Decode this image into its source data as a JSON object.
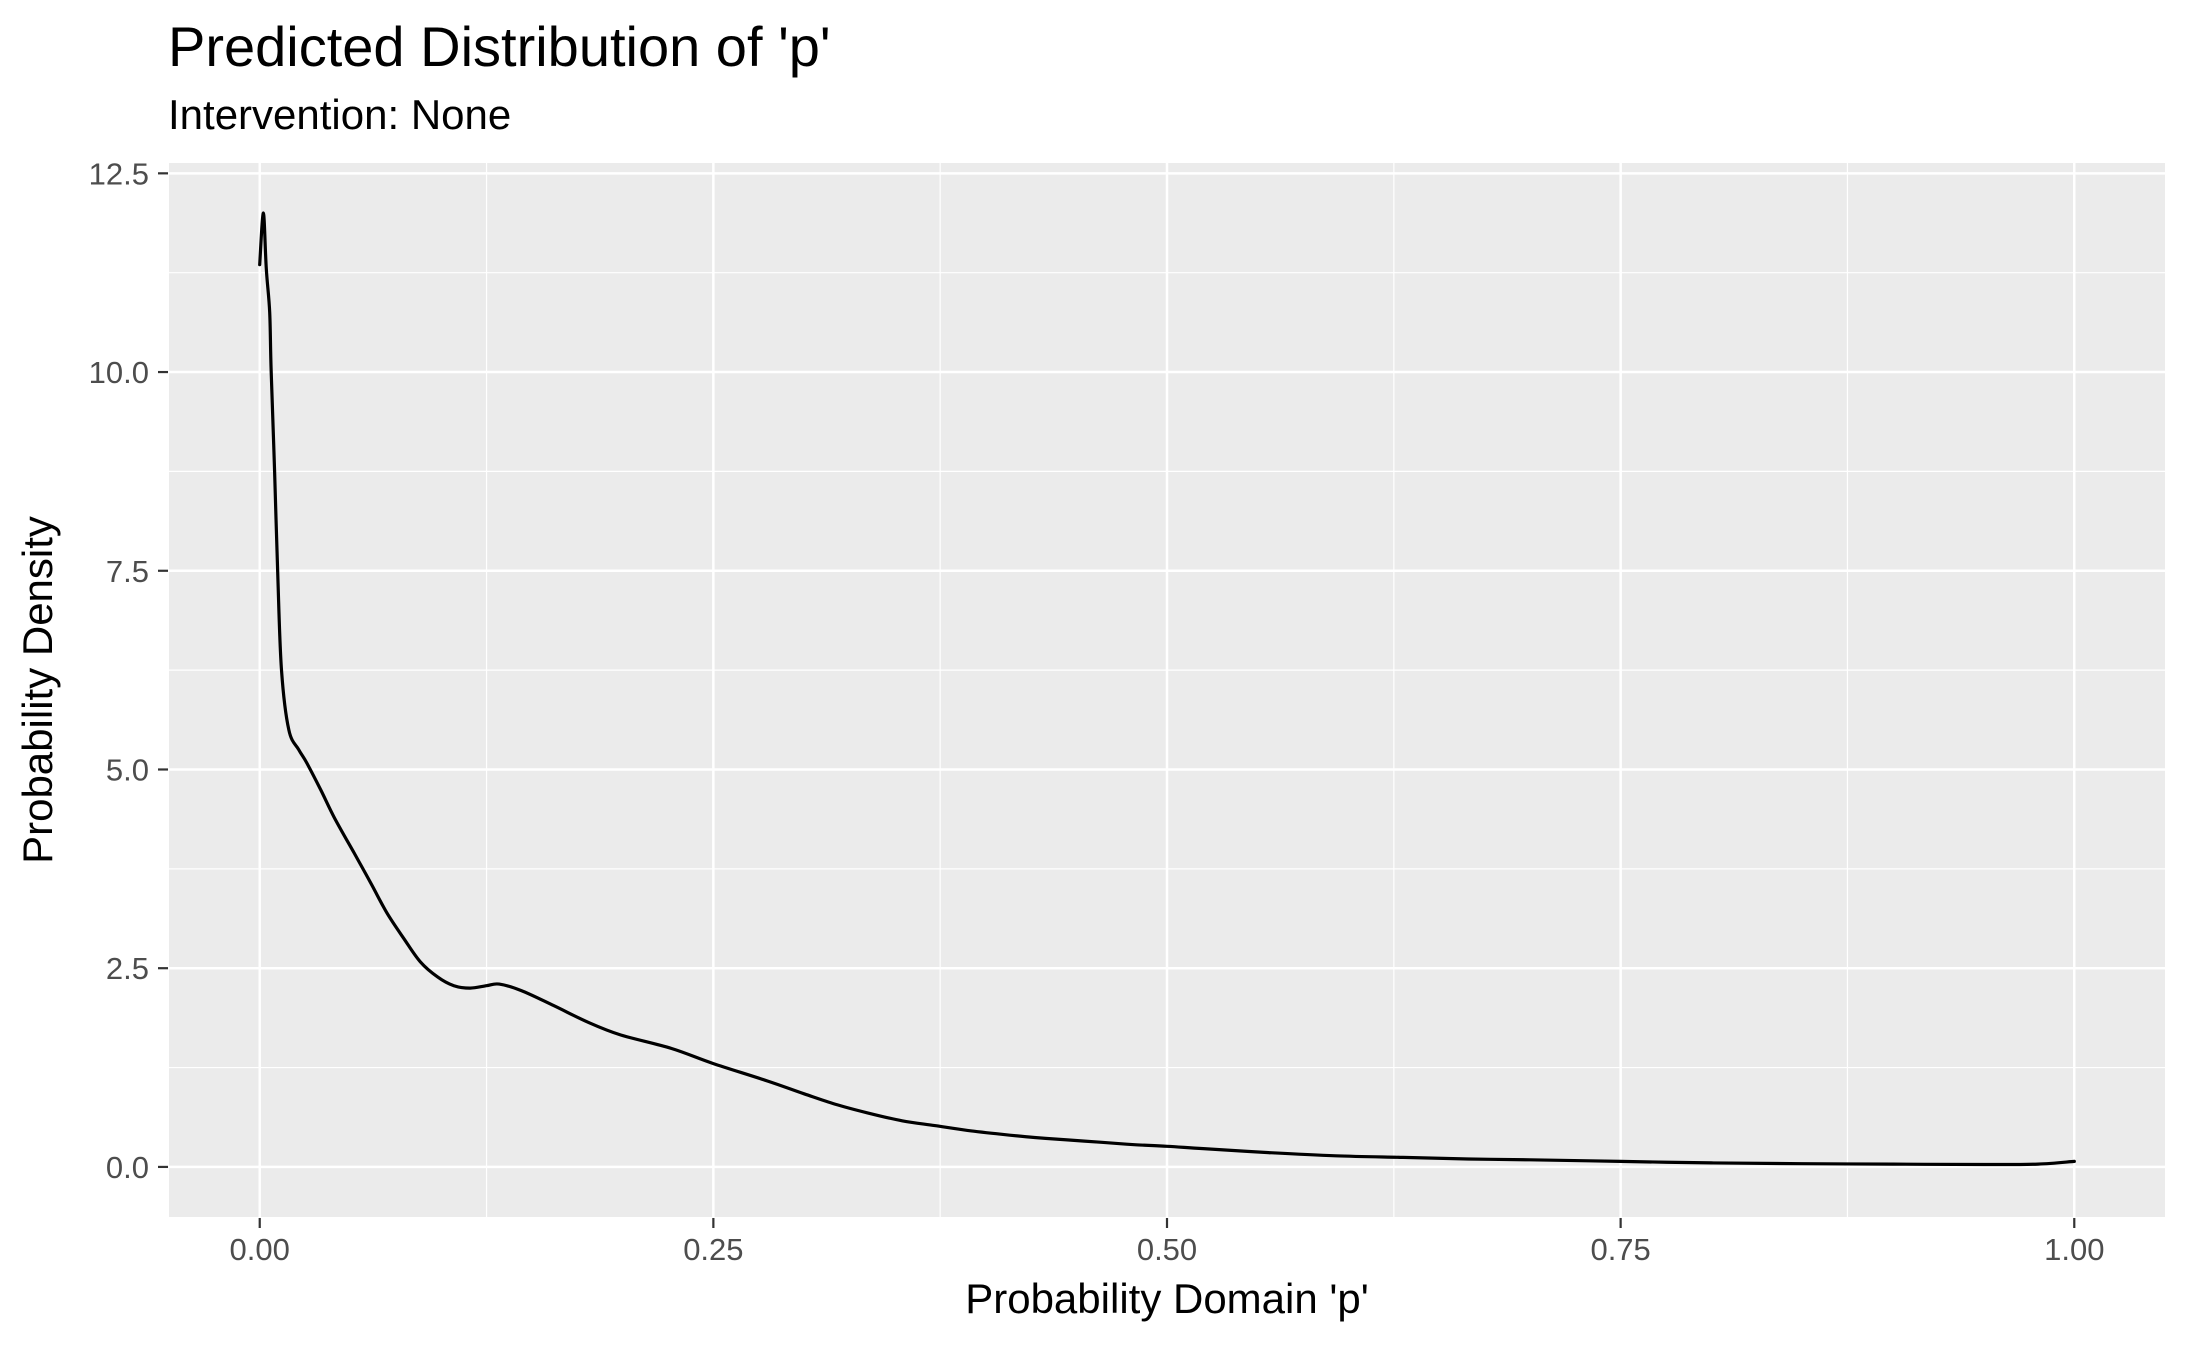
{
  "header": {
    "title": "Predicted Distribution of 'p'",
    "subtitle": "Intervention: None"
  },
  "colors": {
    "panel_background": "#EBEBEB",
    "gridline": "#FFFFFF",
    "curve": "#000000",
    "tick_mark": "#333333",
    "tick_label": "#4D4D4D",
    "text": "#000000",
    "plot_background": "#FFFFFF"
  },
  "chart_data": {
    "type": "line",
    "subtype": "density-curve",
    "title": "Predicted Distribution of 'p'",
    "subtitle": "Intervention: None",
    "xlabel": "Probability Domain 'p'",
    "ylabel": "Probability Density",
    "xlim": [
      -0.05,
      1.05
    ],
    "ylim": [
      -0.63,
      12.63
    ],
    "grid": "white major and minor gridlines on grey panel",
    "legend_position": "none",
    "x_ticks": {
      "values": [
        0,
        0.25,
        0.5,
        0.75,
        1
      ],
      "labels": [
        "0.00",
        "0.25",
        "0.50",
        "0.75",
        "1.00"
      ],
      "minor": [
        0.125,
        0.375,
        0.625,
        0.875
      ]
    },
    "y_ticks": {
      "values": [
        0,
        2.5,
        5,
        7.5,
        10,
        12.5
      ],
      "labels": [
        "0.0",
        "2.5",
        "5.0",
        "7.5",
        "10.0",
        "12.5"
      ],
      "minor": [
        1.25,
        3.75,
        6.25,
        8.75,
        11.25
      ]
    },
    "series": [
      {
        "name": "predicted density of p",
        "points": [
          [
            0.0,
            11.35
          ],
          [
            0.002,
            12.0
          ],
          [
            0.0036,
            11.3
          ],
          [
            0.0055,
            10.75
          ],
          [
            0.0063,
            10.0
          ],
          [
            0.0082,
            8.75
          ],
          [
            0.01,
            7.4
          ],
          [
            0.012,
            6.25
          ],
          [
            0.016,
            5.5
          ],
          [
            0.0215,
            5.25
          ],
          [
            0.026,
            5.08
          ],
          [
            0.0335,
            4.75
          ],
          [
            0.041,
            4.4
          ],
          [
            0.052,
            3.95
          ],
          [
            0.061,
            3.58
          ],
          [
            0.07,
            3.2
          ],
          [
            0.0795,
            2.87
          ],
          [
            0.0885,
            2.58
          ],
          [
            0.098,
            2.39
          ],
          [
            0.107,
            2.28
          ],
          [
            0.116,
            2.25
          ],
          [
            0.125,
            2.28
          ],
          [
            0.132,
            2.3
          ],
          [
            0.144,
            2.22
          ],
          [
            0.162,
            2.03
          ],
          [
            0.181,
            1.82
          ],
          [
            0.199,
            1.66
          ],
          [
            0.227,
            1.49
          ],
          [
            0.25,
            1.3
          ],
          [
            0.28,
            1.08
          ],
          [
            0.3,
            0.92
          ],
          [
            0.317,
            0.79
          ],
          [
            0.335,
            0.68
          ],
          [
            0.354,
            0.58
          ],
          [
            0.372,
            0.52
          ],
          [
            0.39,
            0.46
          ],
          [
            0.409,
            0.41
          ],
          [
            0.427,
            0.37
          ],
          [
            0.445,
            0.34
          ],
          [
            0.464,
            0.31
          ],
          [
            0.482,
            0.28
          ],
          [
            0.5,
            0.26
          ],
          [
            0.52,
            0.23
          ],
          [
            0.556,
            0.18
          ],
          [
            0.593,
            0.14
          ],
          [
            0.63,
            0.12
          ],
          [
            0.666,
            0.1
          ],
          [
            0.7,
            0.09
          ],
          [
            0.75,
            0.07
          ],
          [
            0.8,
            0.05
          ],
          [
            0.85,
            0.04
          ],
          [
            0.9,
            0.035
          ],
          [
            0.95,
            0.03
          ],
          [
            0.98,
            0.035
          ],
          [
            1.0,
            0.07
          ]
        ]
      }
    ]
  }
}
